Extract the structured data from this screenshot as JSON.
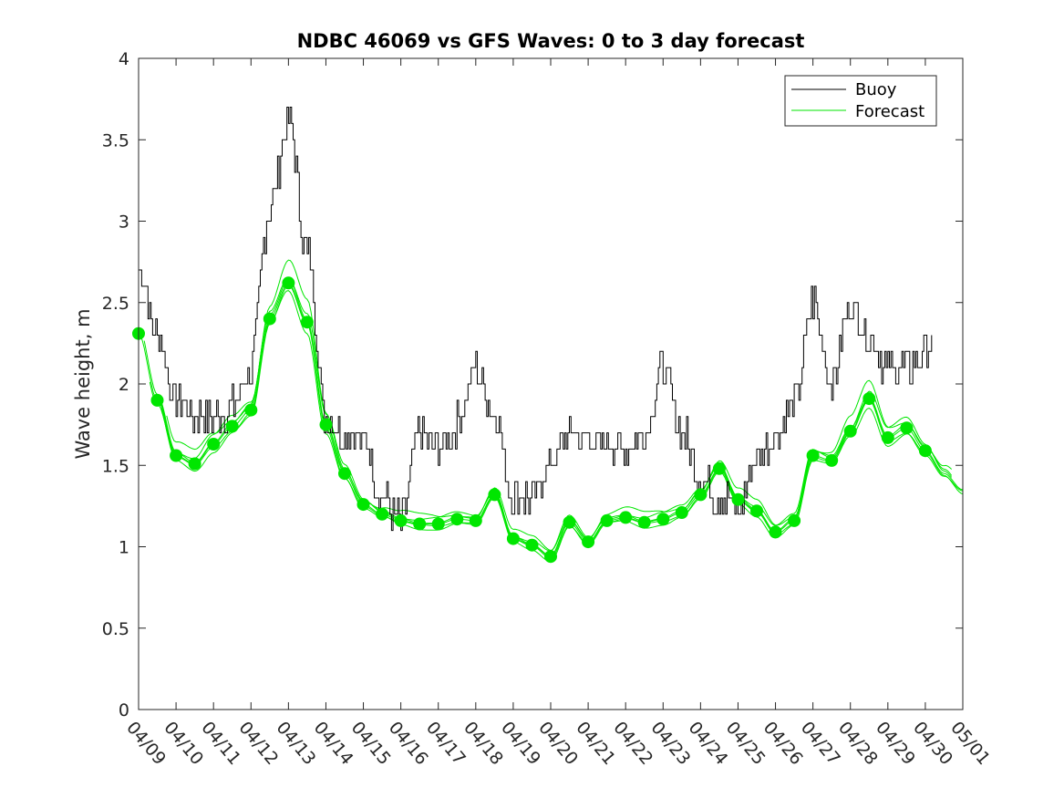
{
  "chart_data": {
    "type": "line",
    "title": "NDBC 46069 vs GFS Waves: 0 to 3 day forecast",
    "xlabel": "",
    "ylabel": "Wave height, m",
    "x_range": [
      "04/09",
      "05/01"
    ],
    "ylim": [
      0,
      4
    ],
    "y_ticks": [
      "0",
      "0.5",
      "1",
      "1.5",
      "2",
      "2.5",
      "3",
      "3.5",
      "4"
    ],
    "x_ticks": [
      "04/09",
      "04/10",
      "04/11",
      "04/12",
      "04/13",
      "04/14",
      "04/15",
      "04/16",
      "04/17",
      "04/18",
      "04/19",
      "04/20",
      "04/21",
      "04/22",
      "04/23",
      "04/24",
      "04/25",
      "04/26",
      "04/27",
      "04/28",
      "04/29",
      "04/30",
      "05/01"
    ],
    "grid": false,
    "legend_position": "top-right",
    "legend": [
      "Buoy",
      "Forecast"
    ],
    "colors": {
      "buoy": "#000000",
      "forecast": "#00e600"
    },
    "series": [
      {
        "name": "Buoy",
        "x_days": [
          0,
          0.5,
          1,
          1.5,
          2,
          2.5,
          3,
          3.5,
          4,
          4.5,
          5,
          5.5,
          6,
          6.5,
          7,
          7.5,
          8,
          8.5,
          9,
          9.5,
          10,
          10.5,
          11,
          11.5,
          12,
          12.5,
          13,
          13.5,
          14,
          14.5,
          15,
          15.5,
          16,
          16.5,
          17,
          17.5,
          18,
          18.5,
          19,
          19.5,
          20,
          20.5,
          21,
          21.2
        ],
        "values": [
          2.7,
          2.3,
          1.9,
          1.8,
          1.8,
          1.85,
          2.1,
          3.1,
          3.6,
          2.8,
          1.8,
          1.7,
          1.65,
          1.3,
          1.15,
          1.7,
          1.6,
          1.75,
          2.1,
          1.8,
          1.3,
          1.3,
          1.5,
          1.7,
          1.65,
          1.65,
          1.6,
          1.7,
          2.1,
          1.7,
          1.4,
          1.3,
          1.25,
          1.55,
          1.7,
          1.9,
          2.5,
          2.0,
          2.5,
          2.3,
          2.1,
          2.1,
          2.2,
          2.2
        ]
      },
      {
        "name": "Forecast",
        "x_days": [
          0,
          0.5,
          1,
          1.5,
          2,
          2.5,
          3,
          3.5,
          4,
          4.5,
          5,
          5.5,
          6,
          6.5,
          7,
          7.5,
          8,
          8.5,
          9,
          9.5,
          10,
          10.5,
          11,
          11.5,
          12,
          12.5,
          13,
          13.5,
          14,
          14.5,
          15,
          15.5,
          16,
          16.5,
          17,
          17.5,
          18,
          18.5,
          19,
          19.5,
          20,
          20.5,
          21,
          21.5,
          22
        ],
        "values": [
          2.31,
          1.9,
          1.56,
          1.51,
          1.63,
          1.74,
          1.84,
          2.4,
          2.62,
          2.38,
          1.75,
          1.45,
          1.26,
          1.2,
          1.16,
          1.14,
          1.14,
          1.17,
          1.16,
          1.32,
          1.05,
          1.01,
          0.94,
          1.15,
          1.03,
          1.16,
          1.18,
          1.15,
          1.17,
          1.21,
          1.32,
          1.48,
          1.29,
          1.22,
          1.09,
          1.16,
          1.56,
          1.53,
          1.71,
          1.91,
          1.67,
          1.73,
          1.59,
          1.45,
          1.35
        ]
      }
    ]
  }
}
